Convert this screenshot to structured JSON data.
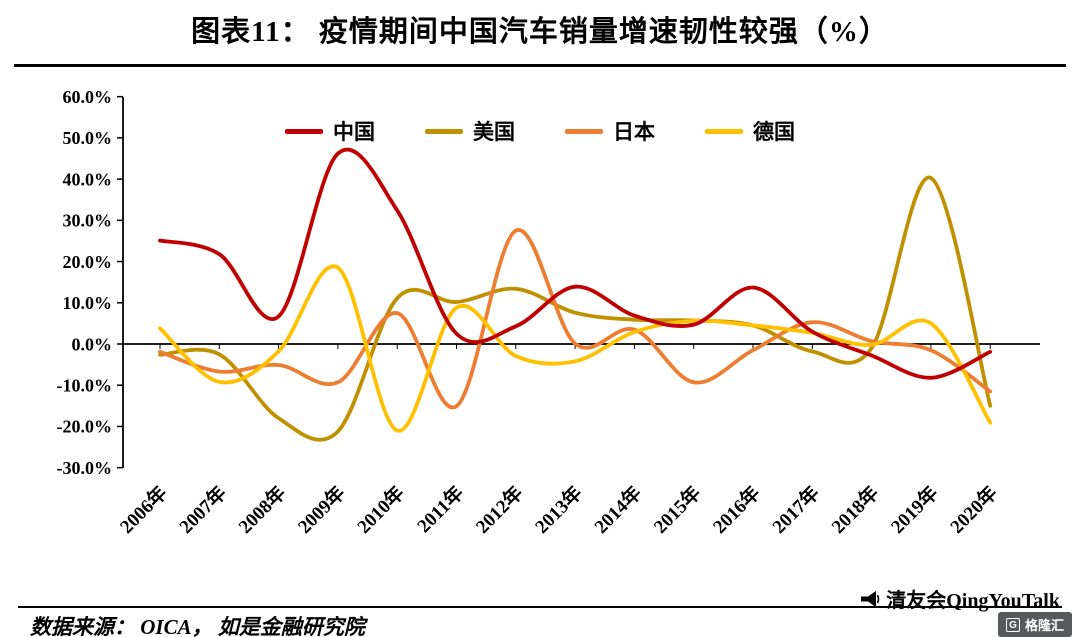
{
  "header": {
    "title": "图表11： 疫情期间中国汽车销量增速韧性较强（%）"
  },
  "footer": {
    "source": "数据来源： OICA， 如是金融研究院",
    "brand": "清友会QingYouTalk",
    "logo_g": "G",
    "logo_text": "格隆汇"
  },
  "chart_data": {
    "type": "line",
    "title": "图表11： 疫情期间中国汽车销量增速韧性较强（%）",
    "x": [
      "2006年",
      "2007年",
      "2008年",
      "2009年",
      "2010年",
      "2011年",
      "2012年",
      "2013年",
      "2014年",
      "2015年",
      "2016年",
      "2017年",
      "2018年",
      "2019年",
      "2020年"
    ],
    "series": [
      {
        "name": "中国",
        "color": "#C00000",
        "values": [
          25.1,
          21.8,
          6.7,
          46.2,
          32.4,
          2.5,
          4.3,
          13.9,
          6.9,
          4.7,
          13.7,
          3.0,
          -2.8,
          -8.2,
          -1.9
        ]
      },
      {
        "name": "美国",
        "color": "#BF9000",
        "values": [
          -2.6,
          -2.5,
          -18.0,
          -21.2,
          11.1,
          10.2,
          13.4,
          7.6,
          5.9,
          5.7,
          4.5,
          -1.8,
          -1.0,
          40.3,
          -15.0
        ]
      },
      {
        "name": "日本",
        "color": "#ED7D31",
        "values": [
          -1.9,
          -6.7,
          -5.1,
          -9.3,
          7.5,
          -15.1,
          27.5,
          0.1,
          3.5,
          -9.3,
          -1.5,
          5.3,
          0.7,
          -1.5,
          -11.5
        ]
      },
      {
        "name": "德国",
        "color": "#FFC000",
        "values": [
          3.8,
          -9.2,
          -1.8,
          18.5,
          -21.0,
          8.8,
          -2.9,
          -4.2,
          2.9,
          5.6,
          4.5,
          2.7,
          -0.2,
          5.0,
          -19.1
        ]
      }
    ],
    "ylim": [
      -30,
      60
    ],
    "ytick_values": [
      60,
      50,
      40,
      30,
      20,
      10,
      0,
      -10,
      -20,
      -30
    ],
    "ytick_labels": [
      "60.0%",
      "50.0%",
      "40.0%",
      "30.0%",
      "20.0%",
      "10.0%",
      "0.0%",
      "-10.0%",
      "-20.0%",
      "-30.0%"
    ],
    "grid": false,
    "legend_position": "top",
    "xlabel": "",
    "ylabel": ""
  }
}
